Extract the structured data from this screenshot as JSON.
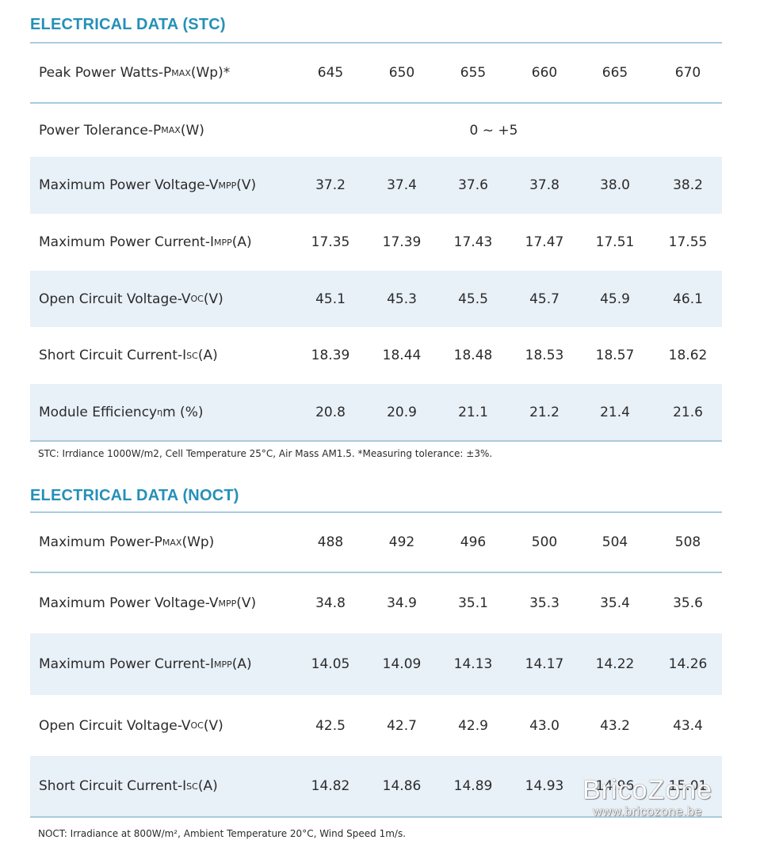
{
  "stc": {
    "title": "ELECTRICAL DATA (STC)",
    "rows": [
      {
        "pre": "Peak Power Watts-P",
        "sub": "MAX",
        "post": " (Wp)*",
        "values": [
          "645",
          "650",
          "655",
          "660",
          "665",
          "670"
        ]
      },
      {
        "pre": "Power Tolerance-P",
        "sub": "MAX",
        "post": " (W)",
        "span_value": "0 ~ +5"
      },
      {
        "pre": "Maximum Power Voltage-V",
        "sub": "MPP",
        "post": " (V)",
        "values": [
          "37.2",
          "37.4",
          "37.6",
          "37.8",
          "38.0",
          "38.2"
        ]
      },
      {
        "pre": "Maximum Power Current-I",
        "sub": "MPP",
        "post": " (A)",
        "values": [
          "17.35",
          "17.39",
          "17.43",
          "17.47",
          "17.51",
          "17.55"
        ]
      },
      {
        "pre": "Open Circuit Voltage-V",
        "sub": "OC",
        "post": " (V)",
        "values": [
          "45.1",
          "45.3",
          "45.5",
          "45.7",
          "45.9",
          "46.1"
        ]
      },
      {
        "pre": "Short Circuit Current-I",
        "sub": "SC",
        "post": " (A)",
        "values": [
          "18.39",
          "18.44",
          "18.48",
          "18.53",
          "18.57",
          "18.62"
        ]
      },
      {
        "pre": "Module Efficiency ",
        "sub": "η",
        "post": " m (%)",
        "values": [
          "20.8",
          "20.9",
          "21.1",
          "21.2",
          "21.4",
          "21.6"
        ]
      }
    ],
    "note": "STC: Irrdiance 1000W/m2, Cell Temperature 25°C, Air Mass AM1.5.   *Measuring tolerance: ±3%."
  },
  "noct": {
    "title": "ELECTRICAL DATA (NOCT)",
    "rows": [
      {
        "pre": "Maximum Power-P",
        "sub": "MAX",
        "post": " (Wp)",
        "values": [
          "488",
          "492",
          "496",
          "500",
          "504",
          "508"
        ]
      },
      {
        "pre": "Maximum Power Voltage-V",
        "sub": "MPP",
        "post": " (V)",
        "values": [
          "34.8",
          "34.9",
          "35.1",
          "35.3",
          "35.4",
          "35.6"
        ]
      },
      {
        "pre": "Maximum Power Current-I",
        "sub": "MPP",
        "post": " (A)",
        "values": [
          "14.05",
          "14.09",
          "14.13",
          "14.17",
          "14.22",
          "14.26"
        ]
      },
      {
        "pre": "Open Circuit Voltage-V",
        "sub": "OC",
        "post": " (V)",
        "values": [
          "42.5",
          "42.7",
          "42.9",
          "43.0",
          "43.2",
          "43.4"
        ]
      },
      {
        "pre": "Short Circuit Current-I",
        "sub": "SC",
        "post": " (A)",
        "values": [
          "14.82",
          "14.86",
          "14.89",
          "14.93",
          "14.96",
          "15.01"
        ]
      }
    ],
    "note": "NOCT: Irradiance at 800W/m², Ambient Temperature 20°C, Wind Speed 1m/s."
  },
  "watermark": {
    "brand": "BricoZone",
    "url": "www.bricozone.be"
  }
}
